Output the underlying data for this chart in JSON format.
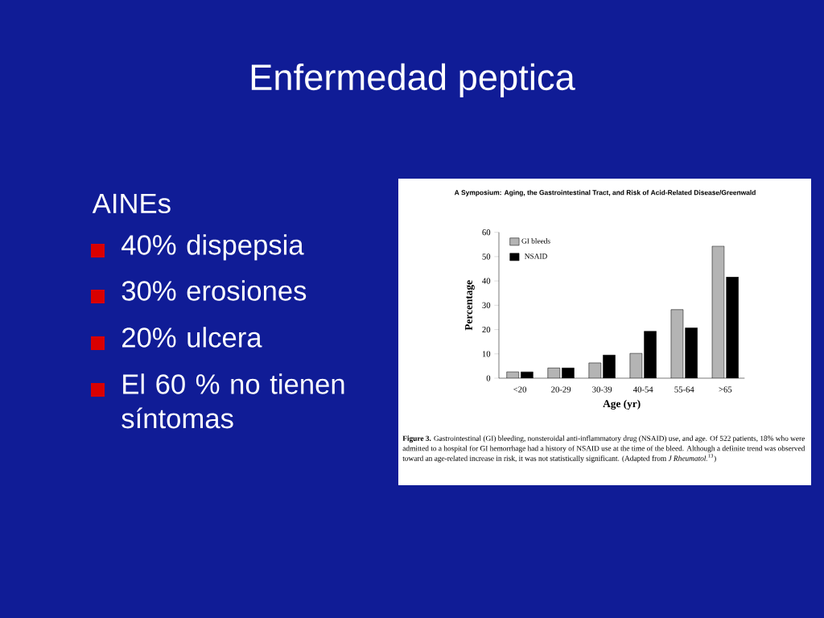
{
  "chart_data": {
    "type": "bar",
    "title": "Enfermedad peptica",
    "xlabel": "Age (yr)",
    "ylabel": "Percentage",
    "annotations": [
      "AINEs",
      "40% dispepsia",
      "30% erosiones",
      "20% ulcera",
      "El 60 % no tienen síntomas",
      "A Symposium: Aging, the Gastrointestinal Tract, and Risk of Acid-Related Disease/Greenwald",
      "**Figure 3.** Gastrointestinal (GI) bleeding, nonsteroidal anti-inflammatory drug (NSAID) use, and age. Of 522 patients, 18% who were admitted to a hospital for GI hemorrhage had a history of NSAID use at the time of the bleed. Although a definite trend was observed toward an age-related increase in risk, it was not statistically significant. (Adapted from *J Rheumatol.*$^{13}$)"
    ],
    "categories": [
      "<20",
      "20-29",
      "30-39",
      "40-54",
      "55-64",
      ">65"
    ],
    "series": [
      {
        "name": "GI bleeds",
        "color": "#b4b4b4",
        "values": [
          2.6,
          4.2,
          6.3,
          10.2,
          28.2,
          54.3
        ]
      },
      {
        "name": "NSAID",
        "color": "#000000",
        "values": [
          2.6,
          4.2,
          9.5,
          19.3,
          20.7,
          41.6
        ]
      }
    ],
    "ylim": [
      0,
      60
    ],
    "yticks": [
      0,
      10,
      20,
      30,
      40,
      50,
      60
    ],
    "legend": "top left"
  }
}
